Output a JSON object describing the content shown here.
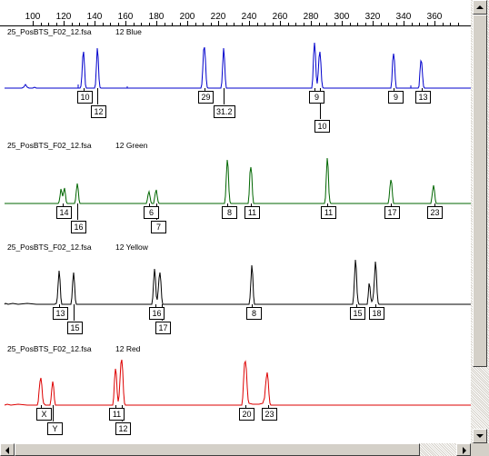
{
  "ruler": {
    "ticks": [
      "100",
      "120",
      "140",
      "160",
      "180",
      "200",
      "220",
      "240",
      "260",
      "280",
      "300",
      "320",
      "340",
      "360"
    ]
  },
  "panels": [
    {
      "sample": "25_PosBTS_F02_12.fsa",
      "dye": "12 Blue",
      "color": "#0000cc",
      "alleles": [
        "10",
        "12",
        "29",
        "31.2",
        "9",
        "10",
        "9",
        "13"
      ]
    },
    {
      "sample": "25_PosBTS_F02_12.fsa",
      "dye": "12 Green",
      "color": "#006600",
      "alleles": [
        "14",
        "16",
        "6",
        "7",
        "8",
        "11",
        "11",
        "17",
        "23"
      ]
    },
    {
      "sample": "25_PosBTS_F02_12.fsa",
      "dye": "12 Yellow",
      "color": "#000000",
      "alleles": [
        "13",
        "15",
        "16",
        "17",
        "8",
        "15",
        "18"
      ]
    },
    {
      "sample": "25_PosBTS_F02_12.fsa",
      "dye": "12 Red",
      "color": "#dd0000",
      "alleles": [
        "X",
        "Y",
        "11",
        "12",
        "20",
        "23"
      ]
    }
  ],
  "icons": {
    "scroll_up": "triangle-up-icon",
    "scroll_down": "triangle-down-icon",
    "scroll_left": "triangle-left-icon",
    "scroll_right": "triangle-right-icon"
  }
}
